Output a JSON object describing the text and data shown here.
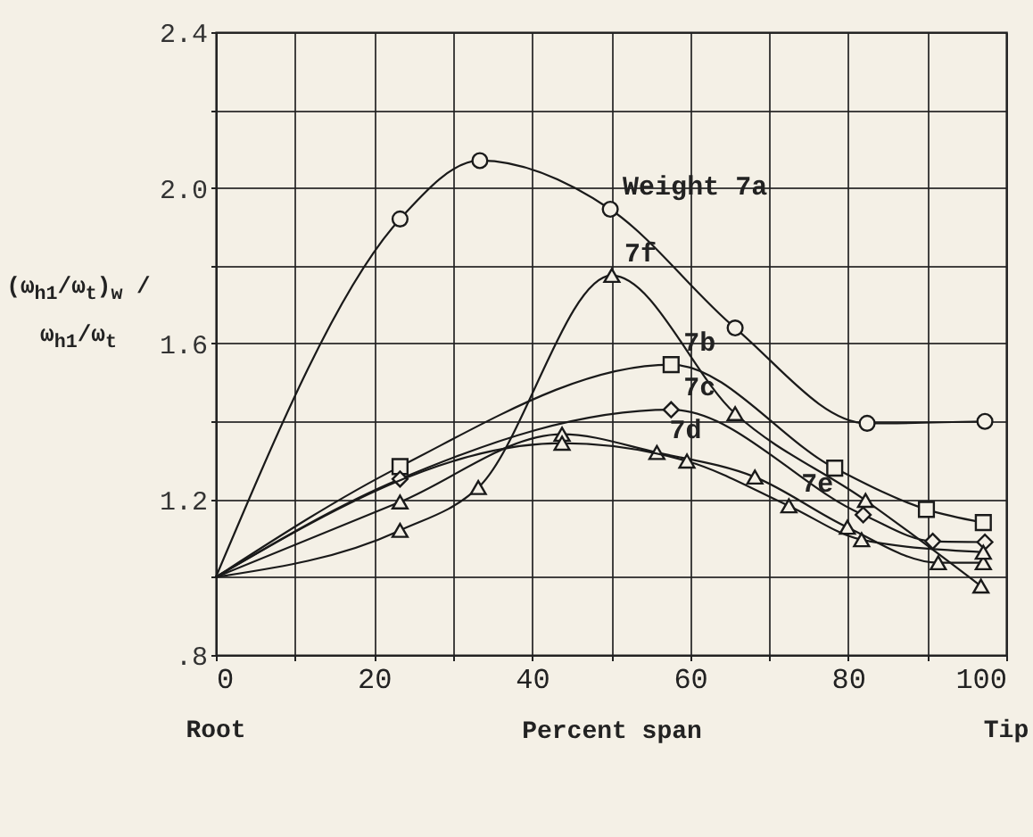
{
  "chart_data": {
    "type": "line",
    "xlabel": "Percent span",
    "ylabel": "(ω$_{h1}$/ω$_{t}$)$_{w}$ / ω$_{h1}$/ω$_{t}$",
    "series": [
      {
        "color": "#1a1a1a",
        "marker": "circle",
        "x": [
          0,
          23.3,
          33.4,
          49.9,
          65.7,
          82.4,
          97.3
        ],
        "values": [
          1.0,
          1.92,
          2.07,
          1.945,
          1.64,
          1.395,
          1.4
        ]
      },
      {
        "color": "#1a1a1a",
        "marker": "triangle",
        "x": [
          0,
          23.3,
          33.2,
          50.1,
          65.7,
          82.2,
          96.8
        ],
        "values": [
          1.0,
          1.12,
          1.23,
          1.775,
          1.42,
          1.197,
          0.977
        ]
      },
      {
        "color": "#1a1a1a",
        "marker": "square",
        "x": [
          0,
          23.3,
          57.6,
          78.3,
          89.9,
          97.1
        ],
        "values": [
          1.0,
          1.284,
          1.546,
          1.28,
          1.174,
          1.14
        ]
      },
      {
        "color": "#1a1a1a",
        "marker": "diamond",
        "x": [
          0,
          23.3,
          57.6,
          81.9,
          90.7,
          97.3
        ],
        "values": [
          1.0,
          1.252,
          1.43,
          1.16,
          1.092,
          1.09
        ]
      },
      {
        "color": "#1a1a1a",
        "marker": "triangle",
        "x": [
          0,
          23.3,
          43.8,
          55.8,
          68.2,
          79.9,
          91.4,
          97.1
        ],
        "values": [
          1.0,
          1.193,
          1.367,
          1.32,
          1.257,
          1.128,
          1.037,
          1.037
        ]
      },
      {
        "color": "#1a1a1a",
        "marker": "triangle",
        "x": [
          0,
          43.8,
          59.6,
          72.5,
          81.7,
          97.1
        ],
        "values": [
          1.0,
          1.344,
          1.298,
          1.183,
          1.096,
          1.064
        ]
      }
    ],
    "annotations": [
      "Root",
      "Tip",
      {
        "text": "Weight 7a",
        "x": 49.9,
        "y": 1.945
      },
      {
        "text": "7f",
        "x": 50.1,
        "y": 1.775
      },
      {
        "text": "7b",
        "x": 57.6,
        "y": 1.546
      },
      {
        "text": "7c",
        "x": 57.6,
        "y": 1.43
      },
      {
        "text": "7d",
        "x": 55.8,
        "y": 1.32
      },
      {
        "text": "7e",
        "x": 72.5,
        "y": 1.183
      }
    ],
    "xlim": [
      0,
      100
    ],
    "ylim": [
      0.8,
      2.4
    ],
    "xticks": [
      0,
      {
        "value": 10,
        "label": null
      },
      20,
      {
        "value": 30,
        "label": null
      },
      40,
      {
        "value": 50,
        "label": null
      },
      60,
      {
        "value": 70,
        "label": null
      },
      80,
      {
        "value": 90,
        "label": null
      },
      100
    ],
    "yticks": [
      {
        "value": 0.8,
        "label": ".8"
      },
      {
        "value": 1.0,
        "label": null
      },
      1.2,
      {
        "value": 1.4,
        "label": null
      },
      1.6,
      {
        "value": 1.8,
        "label": null
      },
      {
        "value": 2.0,
        "label": "2.0"
      },
      {
        "value": 2.2,
        "label": null
      },
      2.4
    ],
    "grid": true
  }
}
